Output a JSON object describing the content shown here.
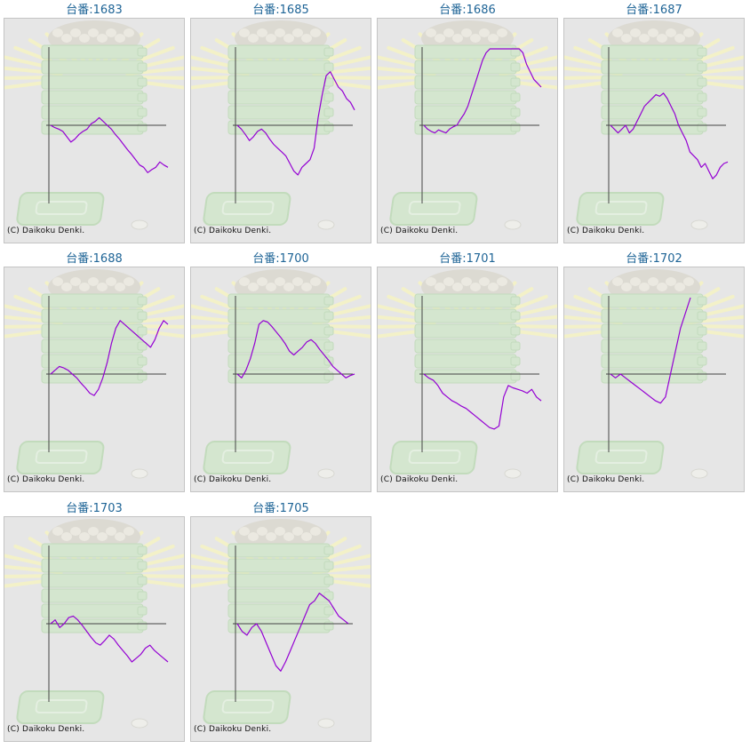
{
  "copyright": "(C) Daikoku Denki.",
  "colors": {
    "line": "#9400d3",
    "title": "#1e6496",
    "axis": "#444444",
    "panel_bg": "#e6e6e6",
    "border": "#c4c4c4"
  },
  "chart_data": [
    {
      "type": "line",
      "title": "台番:1683",
      "ylim": [
        -100,
        100
      ],
      "values": [
        0,
        -3,
        -5,
        -8,
        -15,
        -22,
        -18,
        -12,
        -8,
        -5,
        2,
        5,
        10,
        5,
        0,
        -5,
        -12,
        -18,
        -25,
        -32,
        -38,
        -45,
        -52,
        -55,
        -62,
        -58,
        -55,
        -48,
        -52,
        -55
      ]
    },
    {
      "type": "line",
      "title": "台番:1685",
      "ylim": [
        -100,
        100
      ],
      "values": [
        0,
        -5,
        -12,
        -20,
        -15,
        -8,
        -5,
        -10,
        -18,
        -25,
        -30,
        -35,
        -40,
        -50,
        -60,
        -65,
        -55,
        -50,
        -45,
        -30,
        10,
        40,
        65,
        70,
        60,
        50,
        45,
        35,
        30,
        20
      ]
    },
    {
      "type": "line",
      "title": "台番:1686",
      "ylim": [
        -100,
        100
      ],
      "values": [
        0,
        -5,
        -8,
        -10,
        -6,
        -8,
        -10,
        -5,
        -2,
        0,
        8,
        15,
        25,
        40,
        55,
        70,
        85,
        95,
        100,
        100,
        100,
        100,
        100,
        100,
        100,
        100,
        100,
        95,
        80,
        70,
        60,
        55,
        50
      ]
    },
    {
      "type": "line",
      "title": "台番:1687",
      "ylim": [
        -100,
        100
      ],
      "values": [
        0,
        -5,
        -10,
        -5,
        0,
        -10,
        -5,
        5,
        15,
        25,
        30,
        35,
        40,
        38,
        42,
        35,
        25,
        15,
        0,
        -10,
        -20,
        -35,
        -40,
        -45,
        -55,
        -50,
        -60,
        -70,
        -65,
        -55,
        -50,
        -48
      ]
    },
    {
      "type": "line",
      "title": "台番:1688",
      "ylim": [
        -100,
        100
      ],
      "values": [
        0,
        5,
        10,
        8,
        5,
        0,
        -5,
        -12,
        -18,
        -25,
        -28,
        -20,
        -5,
        15,
        40,
        60,
        70,
        65,
        60,
        55,
        50,
        45,
        40,
        35,
        45,
        60,
        70,
        65
      ]
    },
    {
      "type": "line",
      "title": "台番:1700",
      "ylim": [
        -100,
        100
      ],
      "values": [
        0,
        -5,
        5,
        20,
        40,
        65,
        70,
        68,
        62,
        55,
        48,
        40,
        30,
        25,
        30,
        35,
        42,
        45,
        40,
        32,
        25,
        18,
        10,
        5,
        0,
        -5,
        -2,
        0
      ]
    },
    {
      "type": "line",
      "title": "台番:1701",
      "ylim": [
        -100,
        100
      ],
      "values": [
        0,
        -5,
        -8,
        -15,
        -25,
        -30,
        -35,
        -38,
        -42,
        -45,
        -50,
        -55,
        -60,
        -65,
        -70,
        -72,
        -68,
        -30,
        -15,
        -18,
        -20,
        -22,
        -25,
        -20,
        -30,
        -35
      ]
    },
    {
      "type": "line",
      "title": "台番:1702",
      "ylim": [
        -100,
        100
      ],
      "values": [
        0,
        -5,
        0,
        -5,
        -10,
        -15,
        -20,
        -25,
        -30,
        -35,
        -38,
        -30,
        0,
        30,
        60,
        80,
        100
      ]
    },
    {
      "type": "line",
      "title": "台番:1703",
      "ylim": [
        -100,
        100
      ],
      "values": [
        0,
        5,
        -5,
        0,
        8,
        10,
        5,
        -2,
        -10,
        -18,
        -25,
        -28,
        -22,
        -15,
        -20,
        -28,
        -35,
        -42,
        -50,
        -45,
        -40,
        -32,
        -28,
        -35,
        -40,
        -45,
        -50
      ]
    },
    {
      "type": "line",
      "title": "台番:1705",
      "ylim": [
        -100,
        100
      ],
      "values": [
        0,
        -10,
        -15,
        -5,
        0,
        -10,
        -25,
        -40,
        -55,
        -62,
        -50,
        -35,
        -20,
        -5,
        10,
        25,
        30,
        40,
        35,
        30,
        20,
        10,
        5,
        0
      ]
    }
  ]
}
